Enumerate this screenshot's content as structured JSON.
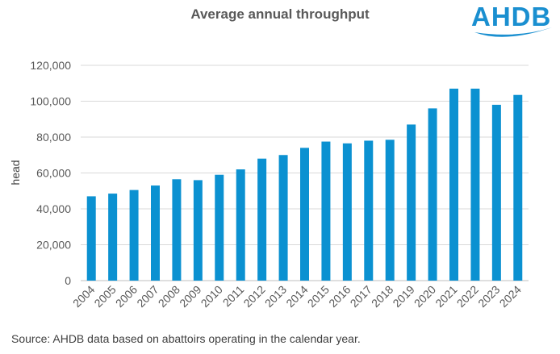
{
  "chart_data": {
    "type": "bar",
    "title": "Average annual throughput",
    "ylabel": "head",
    "xlabel": "",
    "ylim": [
      0,
      120000
    ],
    "yticks": [
      0,
      20000,
      40000,
      60000,
      80000,
      100000,
      120000
    ],
    "ytick_labels": [
      "0",
      "20,000",
      "40,000",
      "60,000",
      "80,000",
      "100,000",
      "120,000"
    ],
    "grid": true,
    "bar_color": "#0b91d1",
    "categories": [
      "2004",
      "2005",
      "2006",
      "2007",
      "2008",
      "2009",
      "2010",
      "2011",
      "2012",
      "2013",
      "2014",
      "2015",
      "2016",
      "2017",
      "2018",
      "2019",
      "2020",
      "2021",
      "2022",
      "2023",
      "2024"
    ],
    "values": [
      47000,
      48500,
      50500,
      53000,
      56500,
      56000,
      59000,
      62000,
      68000,
      70000,
      74000,
      77500,
      76500,
      78000,
      78500,
      87000,
      96000,
      107000,
      107000,
      98000,
      103500
    ]
  },
  "logo": {
    "text": "AHDB",
    "color": "#1a8fd0"
  },
  "source": "Source:  AHDB data based on abattoirs operating in the calendar year."
}
